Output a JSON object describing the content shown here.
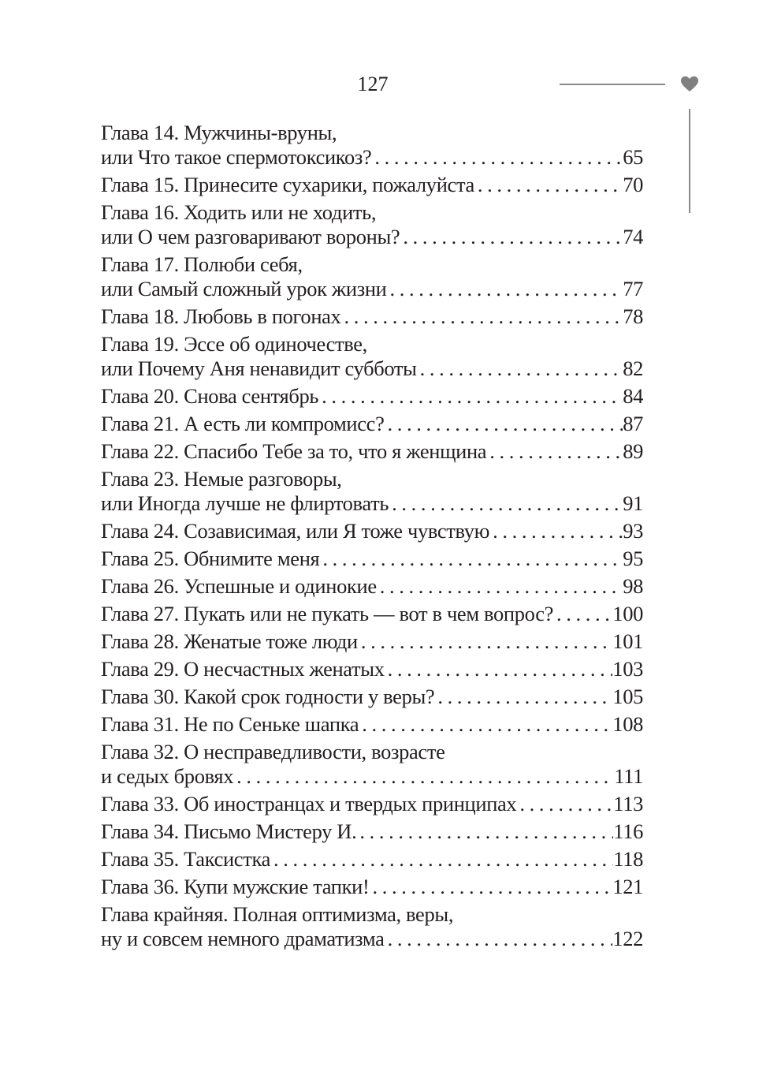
{
  "header": {
    "page_number": "127",
    "ornament_icon": "heart-icon",
    "ornament_color": "#808080"
  },
  "toc": [
    {
      "lines": [
        "Глава 14. Мужчины-вруны,",
        "или Что такое спермотоксикоз?"
      ],
      "page": "65"
    },
    {
      "lines": [
        "Глава 15. Принесите сухарики, пожалуйста"
      ],
      "page": "70"
    },
    {
      "lines": [
        "Глава 16. Ходить или не ходить,",
        "или О чем разговаривают вороны?"
      ],
      "page": "74"
    },
    {
      "lines": [
        "Глава 17. Полюби себя,",
        "или Самый сложный урок жизни"
      ],
      "page": "77"
    },
    {
      "lines": [
        "Глава 18. Любовь в погонах"
      ],
      "page": "78"
    },
    {
      "lines": [
        "Глава 19. Эссе об одиночестве,",
        "или Почему Аня ненавидит субботы"
      ],
      "page": "82"
    },
    {
      "lines": [
        "Глава 20. Снова сентябрь"
      ],
      "page": "84"
    },
    {
      "lines": [
        "Глава 21. А есть ли компромисс?"
      ],
      "page": "87"
    },
    {
      "lines": [
        "Глава 22. Спасибо Тебе за то, что я женщина"
      ],
      "page": "89"
    },
    {
      "lines": [
        "Глава 23. Немые разговоры,",
        "или Иногда лучше не флиртовать"
      ],
      "page": "91"
    },
    {
      "lines": [
        "Глава 24. Созависимая, или Я тоже чувствую"
      ],
      "page": "93"
    },
    {
      "lines": [
        "Глава 25. Обнимите меня"
      ],
      "page": "95"
    },
    {
      "lines": [
        "Глава 26. Успешные и одинокие"
      ],
      "page": "98"
    },
    {
      "lines": [
        "Глава 27. Пукать или не пукать — вот в чем вопрос?"
      ],
      "page": "100"
    },
    {
      "lines": [
        "Глава 28. Женатые тоже люди"
      ],
      "page": "101"
    },
    {
      "lines": [
        "Глава 29. О несчастных женатых"
      ],
      "page": "103"
    },
    {
      "lines": [
        "Глава 30. Какой срок годности у веры?"
      ],
      "page": "105"
    },
    {
      "lines": [
        "Глава 31. Не по Сеньке шапка"
      ],
      "page": "108"
    },
    {
      "lines": [
        "Глава 32. О несправедливости, возрасте",
        "и седых бровях"
      ],
      "page": "111"
    },
    {
      "lines": [
        "Глава 33. Об иностранцах и твердых принципах"
      ],
      "page": "113"
    },
    {
      "lines": [
        "Глава 34. Письмо Мистеру И."
      ],
      "page": "116"
    },
    {
      "lines": [
        "Глава 35. Таксистка"
      ],
      "page": "118"
    },
    {
      "lines": [
        "Глава 36. Купи мужские тапки!"
      ],
      "page": "121"
    },
    {
      "lines": [
        "Глава крайняя. Полная оптимизма, веры,",
        "ну и совсем немного драматизма"
      ],
      "page": "122"
    }
  ]
}
